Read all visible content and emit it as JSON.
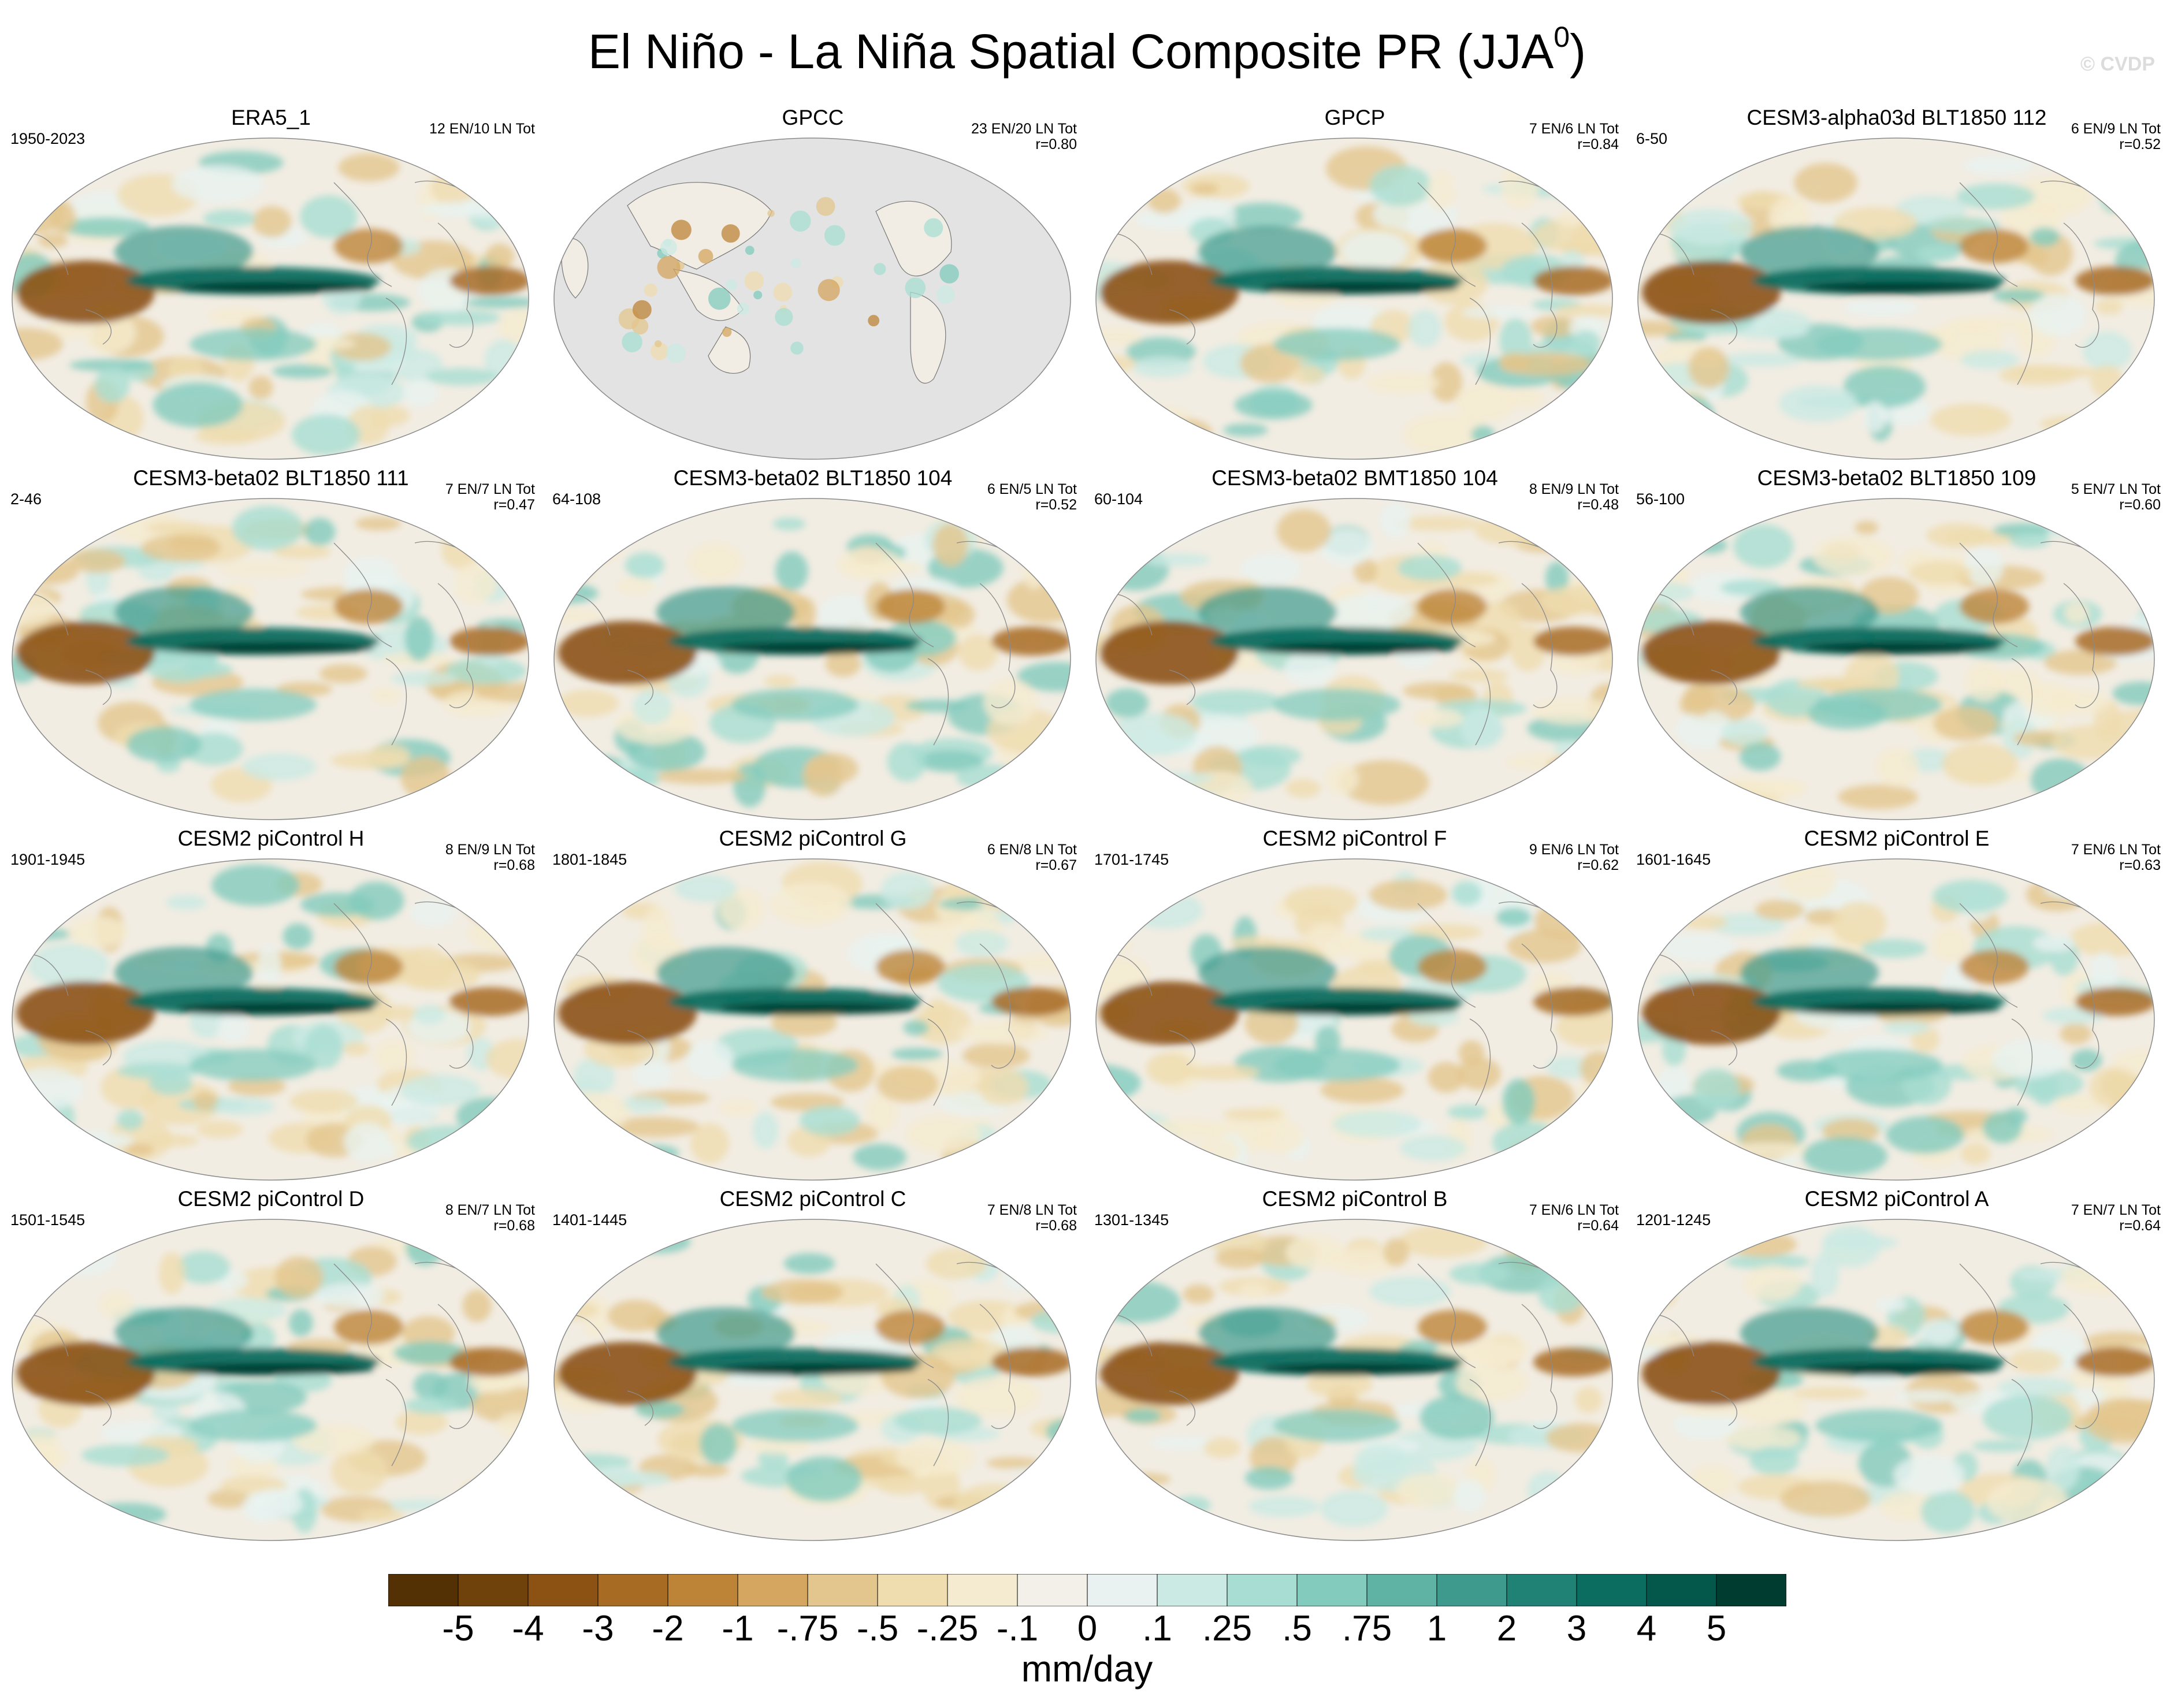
{
  "figure": {
    "title_main": "El Niño - La Niña Spatial Composite PR (JJA",
    "title_sup": "0",
    "title_close": ")",
    "watermark": "© CVDP",
    "units": "mm/day"
  },
  "panels": [
    {
      "title": "ERA5_1",
      "years": "1950-2023",
      "stats_line1": "12 EN/10 LN Tot",
      "stats_line2": "",
      "coverage": "global"
    },
    {
      "title": "GPCC",
      "years": "",
      "stats_line1": "23 EN/20 LN Tot",
      "stats_line2": "r=0.80",
      "coverage": "land-only"
    },
    {
      "title": "GPCP",
      "years": "",
      "stats_line1": "7 EN/6 LN Tot",
      "stats_line2": "r=0.84",
      "coverage": "global"
    },
    {
      "title": "CESM3-alpha03d BLT1850 112",
      "years": "6-50",
      "stats_line1": "6 EN/9 LN Tot",
      "stats_line2": "r=0.52",
      "coverage": "global"
    },
    {
      "title": "CESM3-beta02 BLT1850 111",
      "years": "2-46",
      "stats_line1": "7 EN/7 LN Tot",
      "stats_line2": "r=0.47",
      "coverage": "global"
    },
    {
      "title": "CESM3-beta02 BLT1850 104",
      "years": "64-108",
      "stats_line1": "6 EN/5 LN Tot",
      "stats_line2": "r=0.52",
      "coverage": "global"
    },
    {
      "title": "CESM3-beta02 BMT1850 104",
      "years": "60-104",
      "stats_line1": "8 EN/9 LN Tot",
      "stats_line2": "r=0.48",
      "coverage": "global"
    },
    {
      "title": "CESM3-beta02 BLT1850 109",
      "years": "56-100",
      "stats_line1": "5 EN/7 LN Tot",
      "stats_line2": "r=0.60",
      "coverage": "global"
    },
    {
      "title": "CESM2 piControl H",
      "years": "1901-1945",
      "stats_line1": "8 EN/9 LN Tot",
      "stats_line2": "r=0.68",
      "coverage": "global"
    },
    {
      "title": "CESM2 piControl G",
      "years": "1801-1845",
      "stats_line1": "6 EN/8 LN Tot",
      "stats_line2": "r=0.67",
      "coverage": "global"
    },
    {
      "title": "CESM2 piControl F",
      "years": "1701-1745",
      "stats_line1": "9 EN/6 LN Tot",
      "stats_line2": "r=0.62",
      "coverage": "global"
    },
    {
      "title": "CESM2 piControl E",
      "years": "1601-1645",
      "stats_line1": "7 EN/6 LN Tot",
      "stats_line2": "r=0.63",
      "coverage": "global"
    },
    {
      "title": "CESM2 piControl D",
      "years": "1501-1545",
      "stats_line1": "8 EN/7 LN Tot",
      "stats_line2": "r=0.68",
      "coverage": "global"
    },
    {
      "title": "CESM2 piControl C",
      "years": "1401-1445",
      "stats_line1": "7 EN/8 LN Tot",
      "stats_line2": "r=0.68",
      "coverage": "global"
    },
    {
      "title": "CESM2 piControl B",
      "years": "1301-1345",
      "stats_line1": "7 EN/6 LN Tot",
      "stats_line2": "r=0.64",
      "coverage": "global"
    },
    {
      "title": "CESM2 piControl A",
      "years": "1201-1245",
      "stats_line1": "7 EN/7 LN Tot",
      "stats_line2": "r=0.64",
      "coverage": "global"
    }
  ],
  "colorbar": {
    "colors": [
      "#543005",
      "#6f420c",
      "#8c5214",
      "#a86b24",
      "#bd8438",
      "#d4a65f",
      "#e3c68d",
      "#efdcaf",
      "#f5ebd0",
      "#f3efe9",
      "#e9f2f0",
      "#cbeae3",
      "#a7ddd2",
      "#82cbbd",
      "#5eb3a5",
      "#3e9a8d",
      "#1f8275",
      "#0b6d5f",
      "#03574b",
      "#003c30"
    ],
    "labels": [
      "-5",
      "-4",
      "-3",
      "-2",
      "-1",
      "-.75",
      "-.5",
      "-.25",
      "-.1",
      "0",
      ".1",
      ".25",
      ".5",
      ".75",
      "1",
      "2",
      "3",
      "4",
      "5"
    ]
  }
}
